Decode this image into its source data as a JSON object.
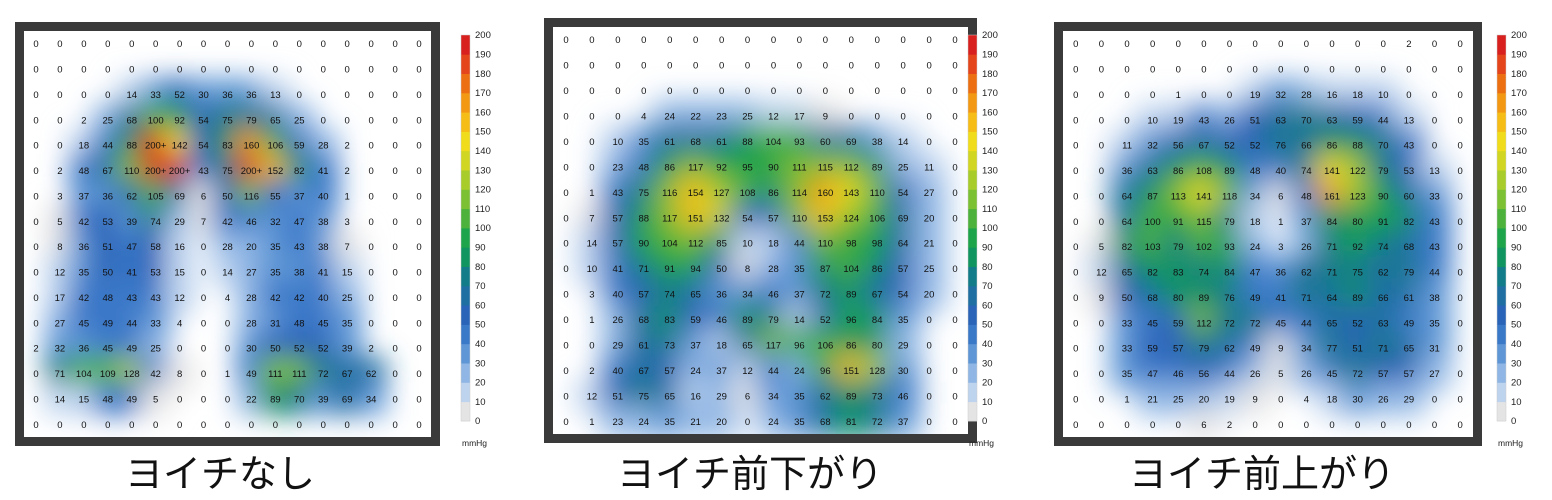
{
  "colors": {
    "frame": "#3a3a3a",
    "plot_background": "#ffffff",
    "value_text": "#111111"
  },
  "legend": {
    "unit": "mmHg",
    "ticks": [
      "0",
      "10",
      "20",
      "30",
      "40",
      "50",
      "60",
      "70",
      "80",
      "90",
      "100",
      "110",
      "120",
      "130",
      "140",
      "150",
      "160",
      "170",
      "180",
      "190",
      "200"
    ],
    "colors": [
      "#ffffff",
      "#e4e4e4",
      "#bdd3ee",
      "#8fb6e4",
      "#5f97d6",
      "#3a78c8",
      "#2a64b8",
      "#1f6fa3",
      "#127d88",
      "#109460",
      "#1ea44b",
      "#4cb23b",
      "#7cc033",
      "#a8cc2a",
      "#d0d621",
      "#f0dc1a",
      "#f6bd16",
      "#f29813",
      "#ec6f12",
      "#e4451a",
      "#d8201e"
    ]
  },
  "chart_data": [
    {
      "type": "heatmap",
      "title": "ヨイチなし",
      "unit": "mmHg",
      "zlim": [
        0,
        200
      ],
      "rows": [
        [
          "0",
          "0",
          "0",
          "0",
          "0",
          "0",
          "0",
          "0",
          "0",
          "0",
          "0",
          "0",
          "0",
          "0",
          "0",
          "0",
          "0"
        ],
        [
          "0",
          "0",
          "0",
          "0",
          "0",
          "0",
          "0",
          "0",
          "0",
          "0",
          "0",
          "0",
          "0",
          "0",
          "0",
          "0",
          "0"
        ],
        [
          "0",
          "0",
          "0",
          "0",
          "14",
          "33",
          "52",
          "30",
          "36",
          "36",
          "13",
          "0",
          "0",
          "0",
          "0",
          "0",
          "0"
        ],
        [
          "0",
          "0",
          "2",
          "25",
          "68",
          "100",
          "92",
          "54",
          "75",
          "79",
          "65",
          "25",
          "0",
          "0",
          "0",
          "0",
          "0"
        ],
        [
          "0",
          "0",
          "18",
          "44",
          "88",
          "200+",
          "142",
          "54",
          "83",
          "160",
          "106",
          "59",
          "28",
          "2",
          "0",
          "0",
          "0"
        ],
        [
          "0",
          "2",
          "48",
          "67",
          "110",
          "200+",
          "200+",
          "43",
          "75",
          "200+",
          "152",
          "82",
          "41",
          "2",
          "0",
          "0",
          "0"
        ],
        [
          "0",
          "3",
          "37",
          "36",
          "62",
          "105",
          "69",
          "6",
          "50",
          "116",
          "55",
          "37",
          "40",
          "1",
          "0",
          "0",
          "0"
        ],
        [
          "0",
          "5",
          "42",
          "53",
          "39",
          "74",
          "29",
          "7",
          "42",
          "46",
          "32",
          "47",
          "38",
          "3",
          "0",
          "0",
          "0"
        ],
        [
          "0",
          "8",
          "36",
          "51",
          "47",
          "58",
          "16",
          "0",
          "28",
          "20",
          "35",
          "43",
          "38",
          "7",
          "0",
          "0",
          "0"
        ],
        [
          "0",
          "12",
          "35",
          "50",
          "41",
          "53",
          "15",
          "0",
          "14",
          "27",
          "35",
          "38",
          "41",
          "15",
          "0",
          "0",
          "0"
        ],
        [
          "0",
          "17",
          "42",
          "48",
          "43",
          "43",
          "12",
          "0",
          "4",
          "28",
          "42",
          "42",
          "40",
          "25",
          "0",
          "0",
          "0"
        ],
        [
          "0",
          "27",
          "45",
          "49",
          "44",
          "33",
          "4",
          "0",
          "0",
          "28",
          "31",
          "48",
          "45",
          "35",
          "0",
          "0",
          "0"
        ],
        [
          "2",
          "32",
          "36",
          "45",
          "49",
          "25",
          "0",
          "0",
          "0",
          "30",
          "50",
          "52",
          "52",
          "39",
          "2",
          "0",
          "0"
        ],
        [
          "0",
          "71",
          "104",
          "109",
          "128",
          "42",
          "8",
          "0",
          "1",
          "49",
          "111",
          "111",
          "72",
          "67",
          "62",
          "0",
          "0"
        ],
        [
          "0",
          "14",
          "15",
          "48",
          "49",
          "5",
          "0",
          "0",
          "0",
          "22",
          "89",
          "70",
          "39",
          "69",
          "34",
          "0",
          "0"
        ],
        [
          "0",
          "0",
          "0",
          "0",
          "0",
          "0",
          "0",
          "0",
          "0",
          "0",
          "0",
          "0",
          "0",
          "0",
          "0",
          "0",
          "0"
        ]
      ]
    },
    {
      "type": "heatmap",
      "title": "ヨイチ前下がり",
      "unit": "mmHg",
      "zlim": [
        0,
        200
      ],
      "rows": [
        [
          "0",
          "0",
          "0",
          "0",
          "0",
          "0",
          "0",
          "0",
          "0",
          "0",
          "0",
          "0",
          "0",
          "0",
          "0",
          "0"
        ],
        [
          "0",
          "0",
          "0",
          "0",
          "0",
          "0",
          "0",
          "0",
          "0",
          "0",
          "0",
          "0",
          "0",
          "0",
          "0",
          "0"
        ],
        [
          "0",
          "0",
          "0",
          "0",
          "0",
          "0",
          "0",
          "0",
          "0",
          "0",
          "0",
          "0",
          "0",
          "0",
          "0",
          "0"
        ],
        [
          "0",
          "0",
          "0",
          "4",
          "24",
          "22",
          "23",
          "25",
          "12",
          "17",
          "9",
          "0",
          "0",
          "0",
          "0",
          "0"
        ],
        [
          "0",
          "0",
          "10",
          "35",
          "61",
          "68",
          "61",
          "88",
          "104",
          "93",
          "60",
          "69",
          "38",
          "14",
          "0",
          "0"
        ],
        [
          "0",
          "0",
          "23",
          "48",
          "86",
          "117",
          "92",
          "95",
          "90",
          "111",
          "115",
          "112",
          "89",
          "25",
          "11",
          "0"
        ],
        [
          "0",
          "1",
          "43",
          "75",
          "116",
          "154",
          "127",
          "108",
          "86",
          "114",
          "160",
          "143",
          "110",
          "54",
          "27",
          "0"
        ],
        [
          "0",
          "7",
          "57",
          "88",
          "117",
          "151",
          "132",
          "54",
          "57",
          "110",
          "153",
          "124",
          "106",
          "69",
          "20",
          "0"
        ],
        [
          "0",
          "14",
          "57",
          "90",
          "104",
          "112",
          "85",
          "10",
          "18",
          "44",
          "110",
          "98",
          "98",
          "64",
          "21",
          "0"
        ],
        [
          "0",
          "10",
          "41",
          "71",
          "91",
          "94",
          "50",
          "8",
          "28",
          "35",
          "87",
          "104",
          "86",
          "57",
          "25",
          "0"
        ],
        [
          "0",
          "3",
          "40",
          "57",
          "74",
          "65",
          "36",
          "34",
          "46",
          "37",
          "72",
          "89",
          "67",
          "54",
          "20",
          "0"
        ],
        [
          "0",
          "1",
          "26",
          "68",
          "83",
          "59",
          "46",
          "89",
          "79",
          "14",
          "52",
          "96",
          "84",
          "35",
          "0",
          "0"
        ],
        [
          "0",
          "0",
          "29",
          "61",
          "73",
          "37",
          "18",
          "65",
          "117",
          "96",
          "106",
          "86",
          "80",
          "29",
          "0",
          "0"
        ],
        [
          "0",
          "2",
          "40",
          "67",
          "57",
          "24",
          "37",
          "12",
          "44",
          "24",
          "96",
          "151",
          "128",
          "30",
          "0",
          "0"
        ],
        [
          "0",
          "12",
          "51",
          "75",
          "65",
          "16",
          "29",
          "6",
          "34",
          "35",
          "62",
          "89",
          "73",
          "46",
          "0",
          "0"
        ],
        [
          "0",
          "1",
          "23",
          "24",
          "35",
          "21",
          "20",
          "0",
          "24",
          "35",
          "68",
          "81",
          "72",
          "37",
          "0",
          "0"
        ]
      ]
    },
    {
      "type": "heatmap",
      "title": "ヨイチ前上がり",
      "unit": "mmHg",
      "zlim": [
        0,
        200
      ],
      "rows": [
        [
          "0",
          "0",
          "0",
          "0",
          "0",
          "0",
          "0",
          "0",
          "0",
          "0",
          "0",
          "0",
          "0",
          "2",
          "0",
          "0"
        ],
        [
          "0",
          "0",
          "0",
          "0",
          "0",
          "0",
          "0",
          "0",
          "0",
          "0",
          "0",
          "0",
          "0",
          "0",
          "0",
          "0"
        ],
        [
          "0",
          "0",
          "0",
          "0",
          "1",
          "0",
          "0",
          "19",
          "32",
          "28",
          "16",
          "18",
          "10",
          "0",
          "0",
          "0"
        ],
        [
          "0",
          "0",
          "0",
          "10",
          "19",
          "43",
          "26",
          "51",
          "63",
          "70",
          "63",
          "59",
          "44",
          "13",
          "0",
          "0"
        ],
        [
          "0",
          "0",
          "11",
          "32",
          "56",
          "67",
          "52",
          "52",
          "76",
          "66",
          "86",
          "88",
          "70",
          "43",
          "0",
          "0"
        ],
        [
          "0",
          "0",
          "36",
          "63",
          "86",
          "108",
          "89",
          "48",
          "40",
          "74",
          "141",
          "122",
          "79",
          "53",
          "13",
          "0"
        ],
        [
          "0",
          "0",
          "64",
          "87",
          "113",
          "141",
          "118",
          "34",
          "6",
          "48",
          "161",
          "123",
          "90",
          "60",
          "33",
          "0"
        ],
        [
          "0",
          "0",
          "64",
          "100",
          "91",
          "115",
          "79",
          "18",
          "1",
          "37",
          "84",
          "80",
          "91",
          "82",
          "43",
          "0"
        ],
        [
          "0",
          "5",
          "82",
          "103",
          "79",
          "102",
          "93",
          "24",
          "3",
          "26",
          "71",
          "92",
          "74",
          "68",
          "43",
          "0"
        ],
        [
          "0",
          "12",
          "65",
          "82",
          "83",
          "74",
          "84",
          "47",
          "36",
          "62",
          "71",
          "75",
          "62",
          "79",
          "44",
          "0"
        ],
        [
          "0",
          "9",
          "50",
          "68",
          "80",
          "89",
          "76",
          "49",
          "41",
          "71",
          "64",
          "89",
          "66",
          "61",
          "38",
          "0"
        ],
        [
          "0",
          "0",
          "33",
          "45",
          "59",
          "112",
          "72",
          "72",
          "45",
          "44",
          "65",
          "52",
          "63",
          "49",
          "35",
          "0"
        ],
        [
          "0",
          "0",
          "33",
          "59",
          "57",
          "79",
          "62",
          "49",
          "9",
          "34",
          "77",
          "51",
          "71",
          "65",
          "31",
          "0"
        ],
        [
          "0",
          "0",
          "35",
          "47",
          "46",
          "56",
          "44",
          "26",
          "5",
          "26",
          "45",
          "72",
          "57",
          "57",
          "27",
          "0"
        ],
        [
          "0",
          "0",
          "1",
          "21",
          "25",
          "20",
          "19",
          "9",
          "0",
          "4",
          "18",
          "30",
          "26",
          "29",
          "0",
          "0"
        ],
        [
          "0",
          "0",
          "0",
          "0",
          "0",
          "6",
          "2",
          "0",
          "0",
          "0",
          "0",
          "0",
          "0",
          "0",
          "0",
          "0"
        ]
      ]
    }
  ]
}
